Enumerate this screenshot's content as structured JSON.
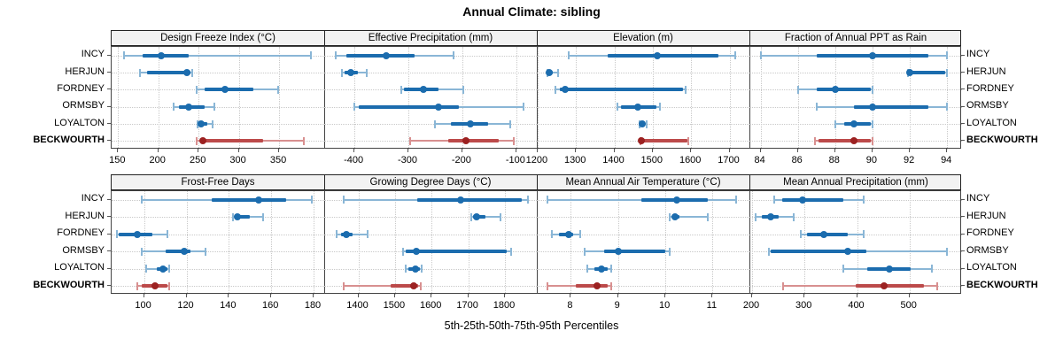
{
  "chart_data": {
    "type": "dotplot-trellis",
    "title": "Annual Climate: sibling",
    "caption": "5th-25th-50th-75th-95th Percentiles",
    "percentiles": [
      5,
      25,
      50,
      75,
      95
    ],
    "stations": [
      "INCY",
      "HERJUN",
      "FORDNEY",
      "ORMSBY",
      "LOYALTON",
      "BECKWOURTH"
    ],
    "highlight_station": "BECKWOURTH",
    "layout": {
      "rows": 2,
      "cols": 4,
      "grid": "dotted",
      "labels_both_sides": true
    },
    "colors": {
      "blue_whisker": "#8ab6d6",
      "blue_box": "#1b6cae",
      "blue_dot": "#1b6cae",
      "red_whisker": "#d89090",
      "red_box": "#bc4a4a",
      "red_dot": "#9c2222",
      "grid": "#c9c9c9",
      "strip_bg": "#f2f2f2",
      "border": "#444"
    },
    "panels": [
      {
        "title": "Design Freeze Index (°C)",
        "xlim": [
          142,
          406
        ],
        "ticks": [
          150,
          200,
          250,
          300,
          350
        ],
        "values": [
          [
            157,
            180,
            204,
            238,
            389
          ],
          [
            177,
            186,
            235,
            240,
            242
          ],
          [
            248,
            257,
            283,
            318,
            349
          ],
          [
            219,
            226,
            238,
            257,
            270
          ],
          [
            249,
            250,
            253,
            261,
            267
          ],
          [
            248,
            252,
            255,
            330,
            381
          ]
        ]
      },
      {
        "title": "Effective Precipitation (mm)",
        "xlim": [
          -456,
          -62
        ],
        "ticks": [
          -400,
          -300,
          -200,
          -100
        ],
        "values": [
          [
            -435,
            -415,
            -341,
            -288,
            -217
          ],
          [
            -424,
            -418,
            -407,
            -393,
            -377
          ],
          [
            -313,
            -308,
            -273,
            -245,
            -198
          ],
          [
            -400,
            -392,
            -244,
            -207,
            -86
          ],
          [
            -251,
            -221,
            -186,
            -152,
            -111
          ],
          [
            -297,
            -226,
            -193,
            -133,
            -104
          ]
        ]
      },
      {
        "title": "Elevation (m)",
        "xlim": [
          1198,
          1752
        ],
        "ticks": [
          1200,
          1300,
          1400,
          1500,
          1600,
          1700
        ],
        "values": [
          [
            1280,
            1383,
            1512,
            1671,
            1714
          ],
          [
            1225,
            1226,
            1230,
            1240,
            1254
          ],
          [
            1246,
            1259,
            1271,
            1579,
            1585
          ],
          [
            1408,
            1417,
            1462,
            1510,
            1519
          ],
          [
            1465,
            1468,
            1473,
            1480,
            1485
          ],
          [
            1467,
            1469,
            1471,
            1590,
            1592
          ]
        ]
      },
      {
        "title": "Fraction of Annual PPT as Rain",
        "xlim": [
          83.4,
          94.8
        ],
        "ticks": [
          84,
          86,
          88,
          90,
          92,
          94
        ],
        "values": [
          [
            84,
            87,
            90,
            93,
            94
          ],
          [
            91.9,
            92,
            92,
            93.9,
            94
          ],
          [
            86,
            87,
            88,
            89.9,
            90
          ],
          [
            87,
            89,
            90,
            93,
            94
          ],
          [
            88,
            88.5,
            89,
            89.9,
            90
          ],
          [
            86.9,
            87.1,
            89,
            89.9,
            90
          ]
        ]
      },
      {
        "title": "Frost-Free Days",
        "xlim": [
          84.7,
          185
        ],
        "ticks": [
          100,
          120,
          140,
          160,
          180
        ],
        "values": [
          [
            99,
            132,
            154,
            167,
            179
          ],
          [
            142,
            143,
            144,
            150,
            156
          ],
          [
            87,
            88,
            97,
            104,
            111
          ],
          [
            99,
            110,
            119,
            122,
            129
          ],
          [
            101,
            106,
            109,
            111,
            112
          ],
          [
            97,
            99,
            105,
            111,
            112
          ]
        ]
      },
      {
        "title": "Growing Degree Days (°C)",
        "xlim": [
          1307,
          1887
        ],
        "ticks": [
          1400,
          1500,
          1600,
          1700,
          1800
        ],
        "values": [
          [
            1360,
            1560,
            1678,
            1845,
            1862
          ],
          [
            1708,
            1713,
            1722,
            1746,
            1789
          ],
          [
            1340,
            1352,
            1368,
            1384,
            1426
          ],
          [
            1522,
            1530,
            1559,
            1805,
            1817
          ],
          [
            1529,
            1537,
            1555,
            1568,
            1573
          ],
          [
            1361,
            1489,
            1551,
            1564,
            1571
          ]
        ]
      },
      {
        "title": "Mean Annual Air Temperature (°C)",
        "xlim": [
          7.28,
          11.78
        ],
        "ticks": [
          8,
          9,
          10,
          11
        ],
        "values": [
          [
            7.5,
            9.5,
            10.25,
            10.9,
            11.5
          ],
          [
            10.1,
            10.15,
            10.2,
            10.3,
            10.9
          ],
          [
            7.6,
            7.75,
            7.95,
            8.05,
            8.2
          ],
          [
            8.3,
            8.7,
            9.0,
            10.0,
            10.1
          ],
          [
            8.35,
            8.5,
            8.65,
            8.78,
            8.85
          ],
          [
            7.5,
            8.1,
            8.55,
            8.78,
            8.85
          ]
        ]
      },
      {
        "title": "Mean Annual Precipitation (mm)",
        "xlim": [
          195,
          600
        ],
        "ticks": [
          200,
          300,
          400,
          500
        ],
        "values": [
          [
            243,
            258,
            296,
            374,
            413
          ],
          [
            207,
            219,
            236,
            250,
            280
          ],
          [
            292,
            305,
            337,
            383,
            413
          ],
          [
            232,
            236,
            383,
            418,
            571
          ],
          [
            374,
            419,
            461,
            502,
            542
          ],
          [
            259,
            397,
            451,
            528,
            553
          ]
        ]
      }
    ]
  }
}
